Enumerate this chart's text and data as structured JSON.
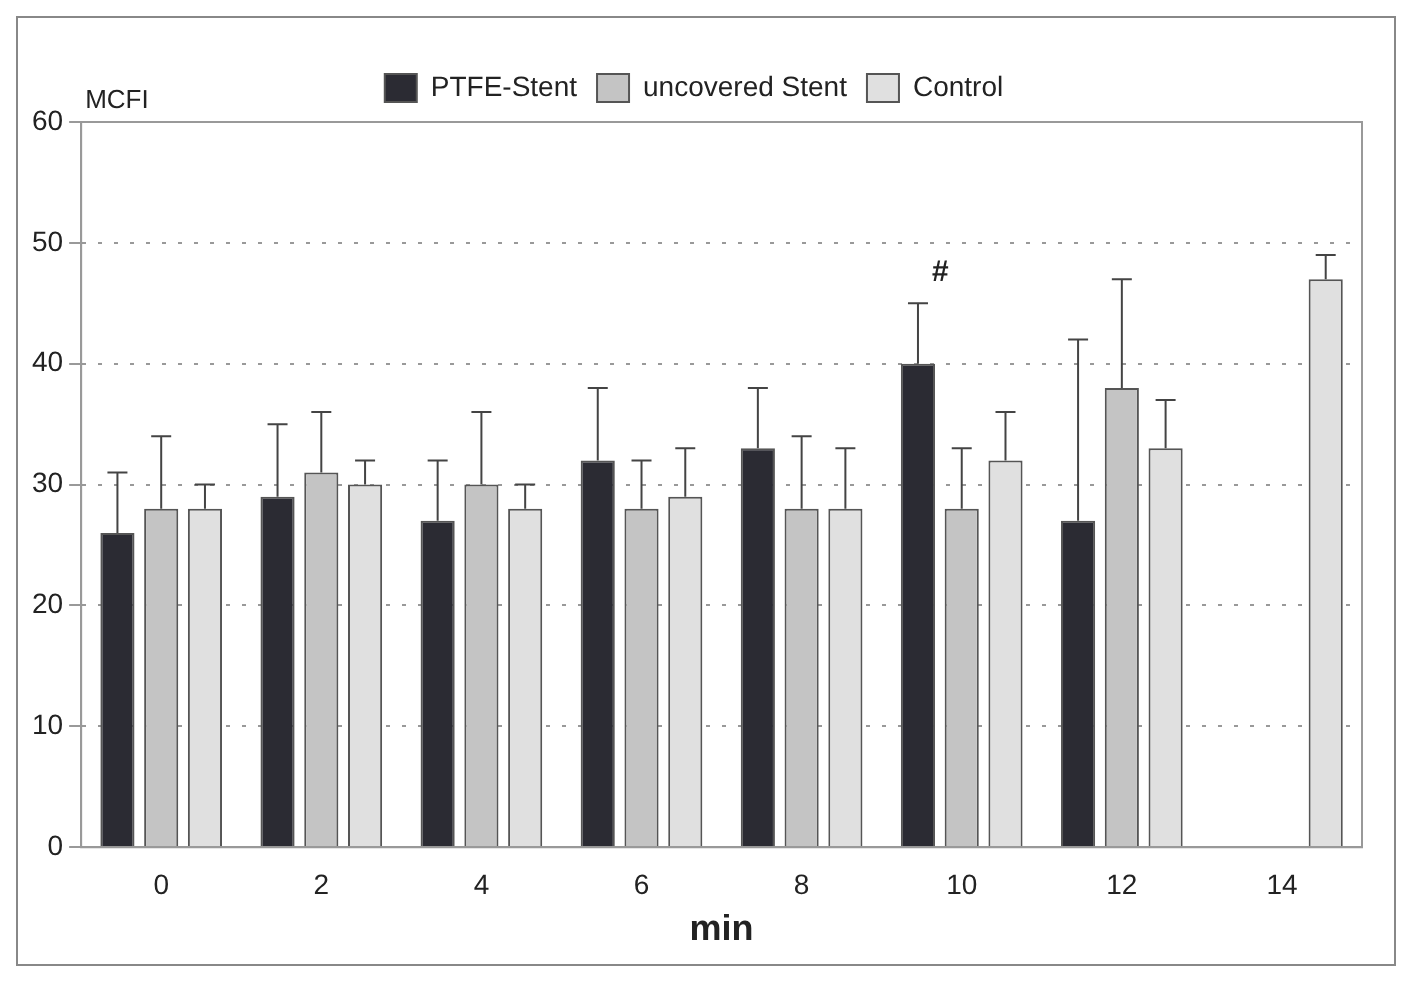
{
  "chart_data": {
    "type": "bar",
    "ylabel": "MCFI",
    "xlabel": "min",
    "categories": [
      "0",
      "2",
      "4",
      "6",
      "8",
      "10",
      "12",
      "14"
    ],
    "series": [
      {
        "name": "PTFE-Stent",
        "color": "#2b2b33",
        "values": [
          26,
          29,
          27,
          32,
          33,
          40,
          27,
          null
        ],
        "errors": [
          [
            26,
            31
          ],
          [
            29,
            35
          ],
          [
            27,
            32
          ],
          [
            32,
            38
          ],
          [
            33,
            38
          ],
          [
            40,
            45
          ],
          [
            27,
            42
          ],
          null
        ]
      },
      {
        "name": "uncovered Stent",
        "color": "#c4c4c4",
        "values": [
          28,
          31,
          30,
          28,
          28,
          28,
          38,
          null
        ],
        "errors": [
          [
            28,
            34
          ],
          [
            31,
            36
          ],
          [
            30,
            36
          ],
          [
            28,
            32
          ],
          [
            28,
            34
          ],
          [
            28,
            33
          ],
          [
            38,
            47
          ],
          null
        ]
      },
      {
        "name": "Control",
        "color": "#e0e0e0",
        "values": [
          28,
          30,
          28,
          29,
          28,
          32,
          33,
          47
        ],
        "errors": [
          [
            28,
            30
          ],
          [
            30,
            32
          ],
          [
            28,
            30
          ],
          [
            29,
            33
          ],
          [
            28,
            33
          ],
          [
            32,
            36
          ],
          [
            33,
            37
          ],
          [
            47,
            49
          ]
        ]
      }
    ],
    "ylim": [
      0,
      60
    ],
    "yticks": [
      0,
      10,
      20,
      30,
      40,
      50,
      60
    ],
    "grid": "y",
    "legend": "top",
    "annotations": [
      "#"
    ]
  }
}
